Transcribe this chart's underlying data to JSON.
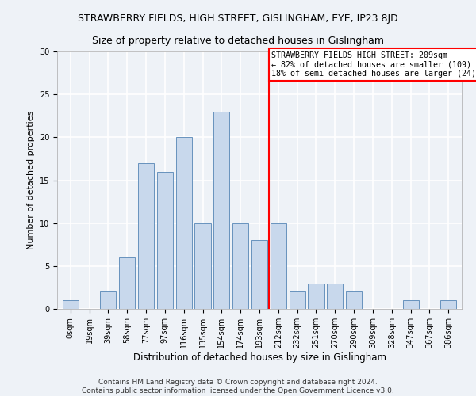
{
  "title": "STRAWBERRY FIELDS, HIGH STREET, GISLINGHAM, EYE, IP23 8JD",
  "subtitle": "Size of property relative to detached houses in Gislingham",
  "xlabel": "Distribution of detached houses by size in Gislingham",
  "ylabel": "Number of detached properties",
  "footnote": "Contains HM Land Registry data © Crown copyright and database right 2024.\nContains public sector information licensed under the Open Government Licence v3.0.",
  "bin_labels": [
    "0sqm",
    "19sqm",
    "39sqm",
    "58sqm",
    "77sqm",
    "97sqm",
    "116sqm",
    "135sqm",
    "154sqm",
    "174sqm",
    "193sqm",
    "212sqm",
    "232sqm",
    "251sqm",
    "270sqm",
    "290sqm",
    "309sqm",
    "328sqm",
    "347sqm",
    "367sqm",
    "386sqm"
  ],
  "bar_values": [
    1,
    0,
    2,
    6,
    17,
    16,
    20,
    10,
    23,
    10,
    8,
    10,
    2,
    3,
    3,
    2,
    0,
    0,
    1,
    0,
    1
  ],
  "bar_color": "#c8d8ec",
  "bar_edgecolor": "#5585b5",
  "vline_x": 10.5,
  "vline_color": "red",
  "annotation_text": "STRAWBERRY FIELDS HIGH STREET: 209sqm\n← 82% of detached houses are smaller (109)\n18% of semi-detached houses are larger (24) →",
  "annotation_box_color": "white",
  "annotation_box_edgecolor": "red",
  "ylim": [
    0,
    30
  ],
  "yticks": [
    0,
    5,
    10,
    15,
    20,
    25,
    30
  ],
  "background_color": "#eef2f7",
  "grid_color": "white",
  "title_fontsize": 9,
  "subtitle_fontsize": 9,
  "xlabel_fontsize": 8.5,
  "ylabel_fontsize": 8,
  "tick_fontsize": 7,
  "footnote_fontsize": 6.5
}
